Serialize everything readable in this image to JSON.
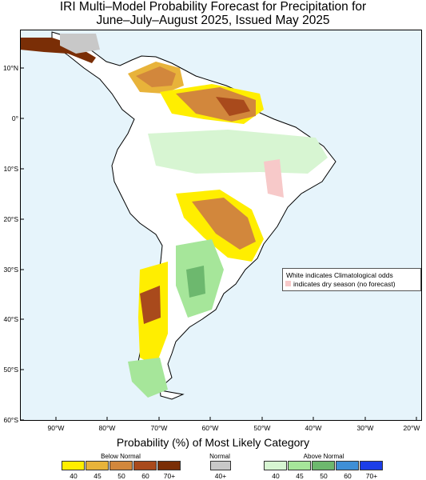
{
  "title": {
    "line1": "IRI Multi–Model Probability Forecast for Precipitation for",
    "line2": "June–July–August 2025, Issued May 2025"
  },
  "axes": {
    "lat_labels": [
      "10°N",
      "0°",
      "10°S",
      "20°S",
      "30°S",
      "40°S",
      "50°S",
      "60°S"
    ],
    "lon_labels": [
      "90°W",
      "80°W",
      "70°W",
      "60°W",
      "50°W",
      "40°W",
      "30°W",
      "20°W"
    ]
  },
  "note": {
    "line1": "White indicates Climatological odds",
    "line2": "indicates dry season (no forecast)",
    "dry_color": "#f7c9c9"
  },
  "key": {
    "title": "Probability (%) of Most Likely Category",
    "below": {
      "label": "Below Normal",
      "colors": [
        "#ffee00",
        "#e8b33a",
        "#d2873c",
        "#a94a1c",
        "#7a2e06"
      ],
      "ticks": [
        "40",
        "45",
        "50",
        "60",
        "70+"
      ]
    },
    "normal": {
      "label": "Normal",
      "color": "#c8c8c8",
      "tick": "40+"
    },
    "above": {
      "label": "Above Normal",
      "colors": [
        "#d7f5d2",
        "#a6e69a",
        "#6db86e",
        "#3f8fd6",
        "#1c3ee8"
      ],
      "ticks": [
        "40",
        "45",
        "50",
        "60",
        "70+"
      ]
    }
  },
  "colors": {
    "ocean": "#e6f4fb",
    "land": "#ffffff",
    "coast": "#000000",
    "border": "#888888"
  }
}
